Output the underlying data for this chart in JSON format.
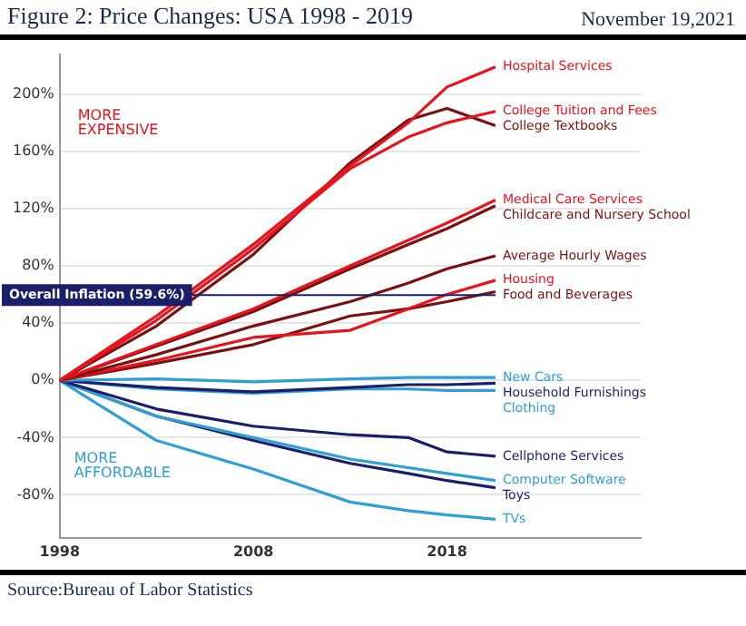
{
  "chart_data": {
    "type": "line",
    "title": "Figure 2: Price Changes: USA 1998 -  2019",
    "annotations": [
      "November 19,2021",
      "MORE EXPENSIVE",
      "MORE AFFORDABLE",
      "Source:Bureau of Labor Statistics"
    ],
    "xlim": [
      1998,
      2028
    ],
    "xticks": [
      1998,
      2008,
      2018
    ],
    "ylim": [
      -110,
      228
    ],
    "yticks": [
      {
        "value": -80,
        "label": "-80%"
      },
      {
        "value": -40,
        "label": "-40%"
      },
      {
        "value": 0,
        "label": "0%"
      },
      {
        "value": 40,
        "label": "40%"
      },
      {
        "value": 80,
        "label": "80%"
      },
      {
        "value": 120,
        "label": "120%"
      },
      {
        "value": 160,
        "label": "160%"
      },
      {
        "value": 200,
        "label": "200%"
      }
    ],
    "grid": "y",
    "legend": false,
    "marker": "none",
    "line_style": "solid",
    "ref_lines": [
      {
        "axis": "y",
        "value": 59.6,
        "label": "Overall Inflation (59.6%)",
        "color": "#1b1f6b"
      }
    ],
    "x": [
      1998,
      2003,
      2008,
      2013,
      2016,
      2018,
      2020.5
    ],
    "series": [
      {
        "name": "Hospital Services",
        "color": "#e8131b",
        "values": [
          0,
          45,
          95,
          150,
          180,
          205,
          219
        ]
      },
      {
        "name": "College Tuition and Fees",
        "color": "#e8131b",
        "values": [
          0,
          42,
          92,
          148,
          170,
          180,
          188
        ]
      },
      {
        "name": "College Textbooks",
        "color": "#7b1010",
        "values": [
          0,
          38,
          88,
          152,
          182,
          190,
          178
        ]
      },
      {
        "name": "Medical Care Services",
        "color": "#e8131b",
        "values": [
          0,
          25,
          50,
          80,
          98,
          110,
          126
        ]
      },
      {
        "name": "Childcare and Nursery School",
        "color": "#7b1010",
        "values": [
          0,
          24,
          48,
          78,
          95,
          106,
          122
        ]
      },
      {
        "name": "Average Hourly Wages",
        "color": "#7b1010",
        "values": [
          0,
          18,
          38,
          55,
          68,
          78,
          87
        ]
      },
      {
        "name": "Housing",
        "color": "#e8131b",
        "values": [
          0,
          14,
          30,
          35,
          50,
          60,
          70
        ]
      },
      {
        "name": "Food and Beverages",
        "color": "#7b1010",
        "values": [
          0,
          12,
          25,
          45,
          50,
          55,
          62
        ]
      },
      {
        "name": "New Cars",
        "color": "#2f9fd6",
        "values": [
          0,
          1,
          -1,
          1,
          2,
          2,
          2
        ]
      },
      {
        "name": "Household Furnishings",
        "color": "#1b1f6b",
        "values": [
          0,
          -5,
          -8,
          -5,
          -3,
          -3,
          -2
        ]
      },
      {
        "name": "Clothing",
        "color": "#2f9fd6",
        "values": [
          0,
          -6,
          -9,
          -6,
          -6,
          -7,
          -7
        ]
      },
      {
        "name": "Cellphone Services",
        "color": "#1b1f6b",
        "values": [
          0,
          -20,
          -32,
          -38,
          -40,
          -50,
          -53
        ]
      },
      {
        "name": "Computer Software",
        "color": "#2f9fd6",
        "values": [
          0,
          -25,
          -40,
          -55,
          -61,
          -65,
          -70
        ]
      },
      {
        "name": "Toys",
        "color": "#1b1f6b",
        "values": [
          0,
          -25,
          -42,
          -58,
          -65,
          -70,
          -75
        ]
      },
      {
        "name": "TVs",
        "color": "#2f9fd6",
        "values": [
          0,
          -42,
          -62,
          -85,
          -91,
          -94,
          -97
        ]
      }
    ]
  }
}
